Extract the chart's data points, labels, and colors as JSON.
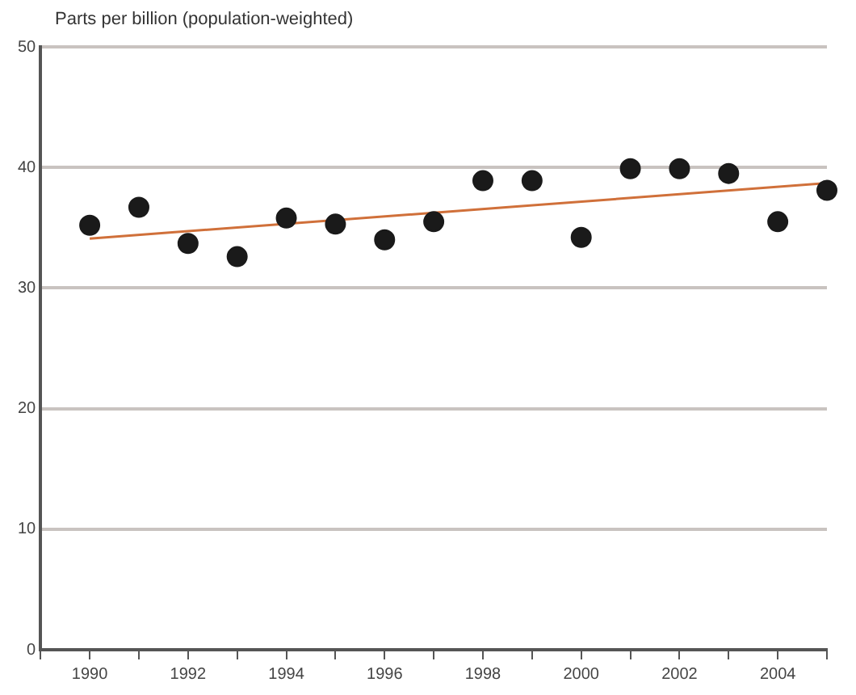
{
  "chart_data": {
    "type": "scatter",
    "ylabel": "Parts per billion (population-weighted)",
    "x": [
      1990,
      1991,
      1992,
      1993,
      1994,
      1995,
      1996,
      1997,
      1998,
      1999,
      2000,
      2001,
      2002,
      2003,
      2004,
      2005
    ],
    "series": [
      {
        "color": "#1a1a1a",
        "values": [
          35.2,
          36.7,
          33.7,
          32.6,
          35.8,
          35.3,
          34.0,
          35.5,
          38.9,
          38.9,
          34.2,
          39.9,
          39.9,
          39.5,
          35.5,
          38.1
        ]
      },
      {
        "type": "line",
        "marker": "none",
        "color": "#d0703a",
        "x": [
          1990,
          2005
        ],
        "values": [
          34.1,
          38.7
        ]
      }
    ],
    "xlim": [
      1989,
      2005
    ],
    "xticks": [
      {
        "value": 1989,
        "label": null
      },
      1990,
      {
        "value": 1991,
        "label": null
      },
      1992,
      {
        "value": 1993,
        "label": null
      },
      1994,
      {
        "value": 1995,
        "label": null
      },
      1996,
      {
        "value": 1997,
        "label": null
      },
      1998,
      {
        "value": 1999,
        "label": null
      },
      2000,
      {
        "value": 2001,
        "label": null
      },
      2002,
      {
        "value": 2003,
        "label": null
      },
      2004,
      {
        "value": 2005,
        "label": null
      }
    ],
    "ylim": [
      0,
      50
    ],
    "yticks": [
      0,
      10,
      20,
      30,
      40,
      50
    ],
    "grid": "y",
    "marker": "circle",
    "legend": false
  }
}
